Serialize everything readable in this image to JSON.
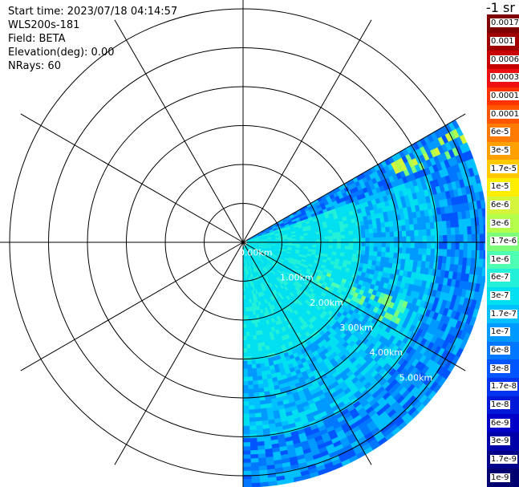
{
  "header": {
    "start_time": "Start time: 2023/07/18 04:14:57",
    "instrument": "WLS200s-181",
    "field": "Field: BETA",
    "elevation": "Elevation(deg): 0.00",
    "nrays": "NRays: 60"
  },
  "colorbar": {
    "title": "-1 sr",
    "labels": [
      "0.0017",
      "0.001",
      "0.0006",
      "0.0003",
      "0.00017",
      "0.0001",
      "6e-5",
      "3e-5",
      "1.7e-5",
      "1e-5",
      "6e-6",
      "3e-6",
      "1.7e-6",
      "1e-6",
      "6e-7",
      "3e-7",
      "1.7e-7",
      "1e-7",
      "6e-8",
      "3e-8",
      "1.7e-8",
      "1e-8",
      "6e-9",
      "3e-9",
      "1.7e-9",
      "1e-9"
    ],
    "colors": [
      "#7f0000",
      "#a00000",
      "#c80000",
      "#ee1010",
      "#ff3300",
      "#ff5500",
      "#ff7a00",
      "#ffa000",
      "#ffc800",
      "#ffee00",
      "#d4f53a",
      "#b3ff4c",
      "#7dff7a",
      "#4cffb3",
      "#22f0d8",
      "#00e0f0",
      "#00c0ff",
      "#0099ff",
      "#0077ff",
      "#0055ff",
      "#0033ee",
      "#0018d8",
      "#0000c8",
      "#0000a8",
      "#00008a",
      "#000070"
    ]
  },
  "chart_data": {
    "type": "heatmap",
    "projection": "polar (PPI), azimuth clockwise from north",
    "range_labels": [
      "0.00km",
      "1.00km",
      "2.00km",
      "3.00km",
      "4.00km",
      "5.00km",
      "6"
    ],
    "range_ring_step_km": 1.0,
    "range_rings_km": [
      1,
      2,
      3,
      4,
      5,
      6
    ],
    "azimuth_spokes_deg": [
      0,
      30,
      60,
      90,
      120,
      150,
      180,
      210,
      240,
      270,
      300,
      330
    ],
    "sector_azimuth_deg": [
      60,
      180
    ],
    "nrays": 60,
    "max_range_km": 6.3,
    "field": "BETA",
    "colorbar_unit": "-1 sr",
    "value_range": [
      1e-09,
      0.0017
    ],
    "features": [
      {
        "description": "near-range bright band",
        "range_km": [
          0.0,
          3.0
        ],
        "level": "1e-6"
      },
      {
        "description": "background",
        "range_km": [
          0.0,
          6.3
        ],
        "level": "3e-8"
      },
      {
        "description": "elevated returns along north-east edge",
        "azimuth_deg": [
          62,
          68
        ],
        "range_km": [
          4.0,
          6.3
        ],
        "level": "1e-5"
      }
    ]
  }
}
